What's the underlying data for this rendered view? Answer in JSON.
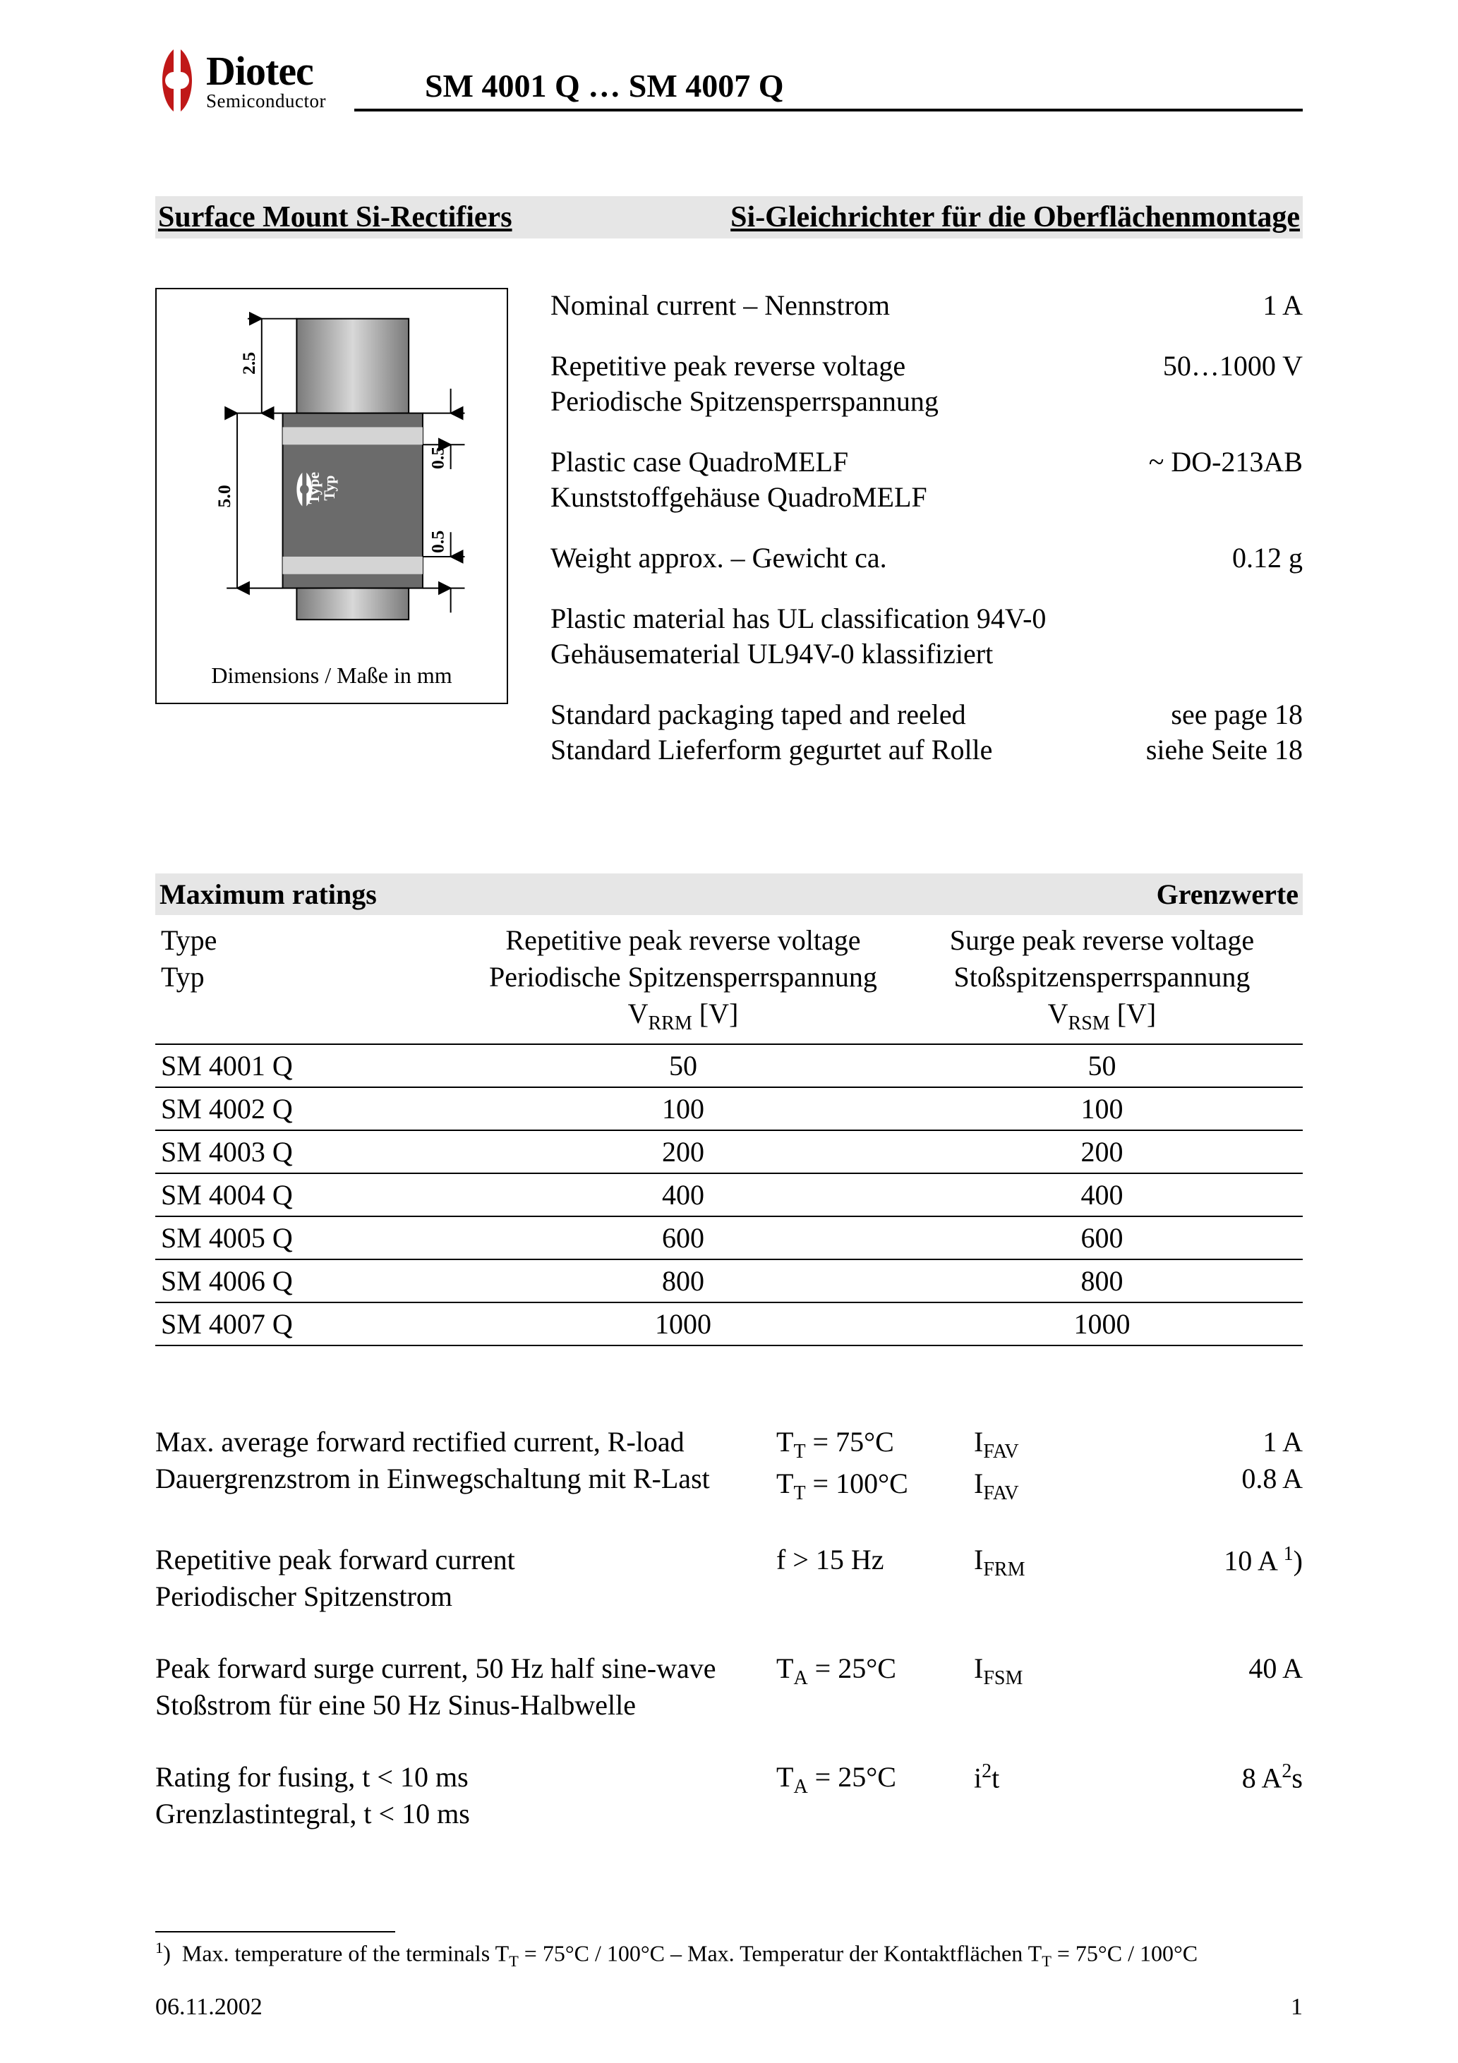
{
  "header": {
    "logo_top": "Diotec",
    "logo_bottom": "Semiconductor",
    "title": "SM 4001 Q … SM 4007 Q",
    "logo_color": "#c01818"
  },
  "section": {
    "left": "Surface Mount Si-Rectifiers",
    "right": "Si-Gleichrichter für die Oberflächenmontage"
  },
  "diagram": {
    "caption": "Dimensions / Maße in mm",
    "dim_h_total": "5.0",
    "dim_h_top": "2.5",
    "dim_band_top": "0.5",
    "dim_band_bottom": "0.5",
    "body_fill": "#6b6b6b",
    "pad_fill_top": "#a8a8a8",
    "pad_fill_bottom": "#a8a8a8",
    "band_fill": "#d0d0d0",
    "type_text1": "Type",
    "type_text2": "Typ",
    "logo_mark_color": "#ffffff"
  },
  "specs": [
    {
      "l1": "Nominal current – Nennstrom",
      "l2": "",
      "r1": "1 A",
      "r2": ""
    },
    {
      "l1": "Repetitive peak reverse voltage",
      "l2": "Periodische Spitzensperrspannung",
      "r1": "50…1000 V",
      "r2": ""
    },
    {
      "l1": "Plastic case QuadroMELF",
      "l2": "Kunststoffgehäuse QuadroMELF",
      "r1": "~ DO-213AB",
      "r2": ""
    },
    {
      "l1": "Weight approx. – Gewicht ca.",
      "l2": "",
      "r1": "0.12 g",
      "r2": ""
    },
    {
      "l1": "Plastic material has UL classification 94V-0",
      "l2": "Gehäusematerial UL94V-0 klassifiziert",
      "r1": "",
      "r2": ""
    },
    {
      "l1": "Standard packaging taped and reeled",
      "l2": "Standard Lieferform gegurtet auf Rolle",
      "r1": "see page 18",
      "r2": "siehe Seite 18"
    }
  ],
  "ratings": {
    "heading_left": "Maximum ratings",
    "heading_right": "Grenzwerte",
    "col1_l1": "Type",
    "col1_l2": "Typ",
    "col2_l1": "Repetitive peak reverse voltage",
    "col2_l2": "Periodische Spitzensperrspannung",
    "col2_sym_pre": "V",
    "col2_sym_sub": "RRM",
    "col2_sym_post": " [V]",
    "col3_l1": "Surge peak reverse voltage",
    "col3_l2": "Stoßspitzensperrspannung",
    "col3_sym_pre": "V",
    "col3_sym_sub": "RSM",
    "col3_sym_post": " [V]",
    "rows": [
      {
        "t": "SM 4001 Q",
        "v1": "50",
        "v2": "50"
      },
      {
        "t": "SM 4002 Q",
        "v1": "100",
        "v2": "100"
      },
      {
        "t": "SM 4003 Q",
        "v1": "200",
        "v2": "200"
      },
      {
        "t": "SM 4004 Q",
        "v1": "400",
        "v2": "400"
      },
      {
        "t": "SM 4005 Q",
        "v1": "600",
        "v2": "600"
      },
      {
        "t": "SM 4006 Q",
        "v1": "800",
        "v2": "800"
      },
      {
        "t": "SM 4007 Q",
        "v1": "1000",
        "v2": "1000"
      }
    ]
  },
  "params": [
    {
      "l1": "Max. average forward rectified current, R-load",
      "l2": "Dauergrenzstrom in Einwegschaltung mit R-Last",
      "c1_html": "T<sub class=\"sub\">T</sub> = 75°C",
      "c2_html": "T<sub class=\"sub\">T</sub> = 100°C",
      "s1_html": "I<sub class=\"sub\">FAV</sub>",
      "s2_html": "I<sub class=\"sub\">FAV</sub>",
      "v1_html": "1 A",
      "v2_html": "0.8 A"
    },
    {
      "l1": "Repetitive peak forward current",
      "l2": "Periodischer Spitzenstrom",
      "c1_html": "f > 15 Hz",
      "c2_html": "",
      "s1_html": "I<sub class=\"sub\">FRM</sub>",
      "s2_html": "",
      "v1_html": "10 A <sup class=\"sup\">1</sup>)",
      "v2_html": ""
    },
    {
      "l1": "Peak forward surge current, 50 Hz half sine-wave",
      "l2": "Stoßstrom für eine 50 Hz Sinus-Halbwelle",
      "c1_html": "T<sub class=\"sub\">A</sub> = 25°C",
      "c2_html": "",
      "s1_html": "I<sub class=\"sub\">FSM</sub>",
      "s2_html": "",
      "v1_html": "40 A",
      "v2_html": ""
    },
    {
      "l1": "Rating for fusing, t < 10 ms",
      "l2": "Grenzlastintegral, t < 10 ms",
      "c1_html": "T<sub class=\"sub\">A</sub> = 25°C",
      "c2_html": "",
      "s1_html": "i<sup class=\"sup\">2</sup>t",
      "s2_html": "",
      "v1_html": "8 A<sup class=\"sup\">2</sup>s",
      "v2_html": ""
    }
  ],
  "footnote_html": "<sup class=\"sup\">1</sup>)&nbsp;&nbsp;Max. temperature of the terminals T<sub class=\"sub\">T</sub> = 75°C / 100°C – Max. Temperatur der Kontaktflächen T<sub class=\"sub\">T</sub> = 75°C / 100°C",
  "footer": {
    "date": "06.11.2002",
    "page": "1"
  }
}
